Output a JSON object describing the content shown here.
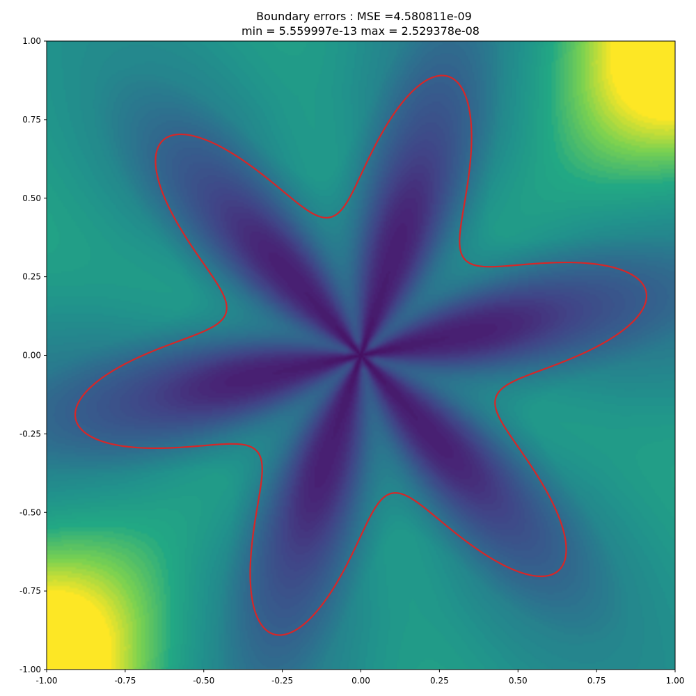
{
  "chart_data": {
    "type": "heatmap",
    "title": "Boundary errors : MSE =4.580811e-09",
    "subtitle": "min = 5.559997e-13 max = 2.529378e-08",
    "xlabel": "",
    "ylabel": "",
    "xlim": [
      -1.0,
      1.0
    ],
    "ylim": [
      -1.0,
      1.0
    ],
    "xticks": [
      "-1.00",
      "-0.75",
      "-0.50",
      "-0.25",
      "0.00",
      "0.25",
      "0.50",
      "0.75",
      "1.00"
    ],
    "yticks": [
      "-1.00",
      "-0.75",
      "-0.50",
      "-0.25",
      "0.00",
      "0.25",
      "0.50",
      "0.75",
      "1.00"
    ],
    "tick_values": [
      -1.0,
      -0.75,
      -0.5,
      -0.25,
      0.0,
      0.25,
      0.5,
      0.75,
      1.0
    ],
    "grid": false,
    "colormap": "viridis",
    "boundary_curve": {
      "color": "#d62728",
      "shape": "six-lobed star",
      "lobes": 6,
      "r_mean": 0.66,
      "amplitude_cos6": 0.24,
      "amplitude_cos12": 0.03,
      "phase_radians": 0.22
    }
  }
}
